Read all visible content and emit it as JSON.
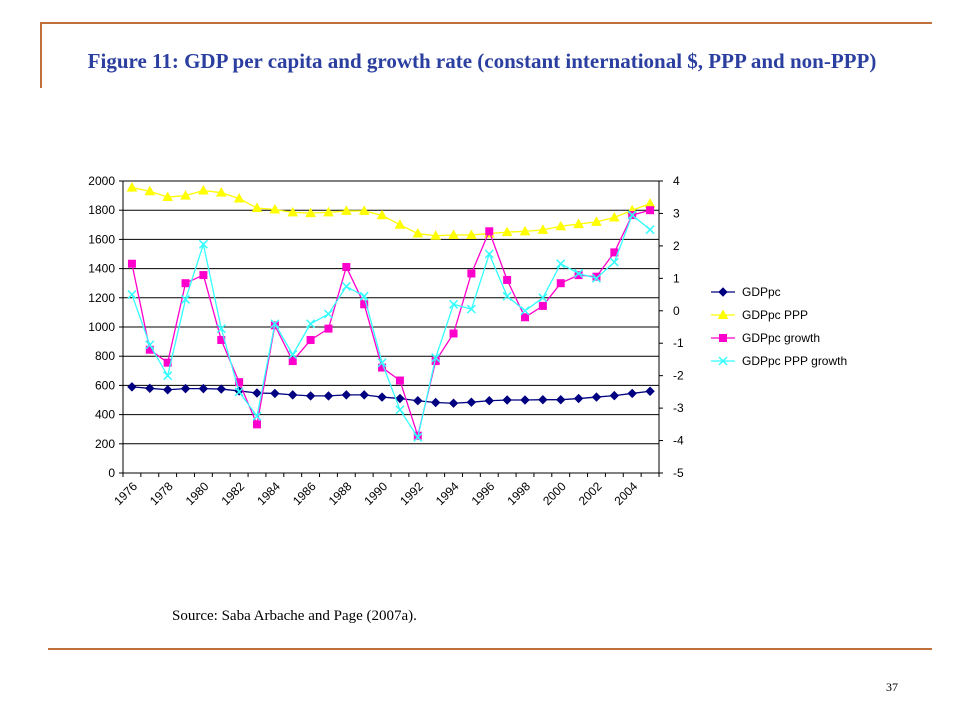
{
  "slide": {
    "title": "Figure 11: GDP per capita and growth rate (constant international $, PPP and non-PPP)",
    "source": "Source: Saba Arbache and Page (2007a).",
    "page_number": "37",
    "frame_color": "#c0703a",
    "title_color": "#2b3fa0"
  },
  "chart_data": {
    "type": "line",
    "title": "",
    "xlabel": "",
    "ylabel": "",
    "x": [
      1976,
      1977,
      1978,
      1979,
      1980,
      1981,
      1982,
      1983,
      1984,
      1985,
      1986,
      1987,
      1988,
      1989,
      1990,
      1991,
      1992,
      1993,
      1994,
      1995,
      1996,
      1997,
      1998,
      1999,
      2000,
      2001,
      2002,
      2003,
      2004,
      2005
    ],
    "x_tick_labels": [
      "1976",
      "1978",
      "1980",
      "1982",
      "1984",
      "1986",
      "1988",
      "1990",
      "1992",
      "1994",
      "1996",
      "1998",
      "2000",
      "2002",
      "2004"
    ],
    "y_left": {
      "ylim": [
        0,
        2000
      ],
      "ticks": [
        "0",
        "200",
        "400",
        "600",
        "800",
        "1000",
        "1200",
        "1400",
        "1600",
        "1800",
        "2000"
      ]
    },
    "y_right": {
      "ylim": [
        -5,
        4
      ],
      "ticks": [
        "-5",
        "-4",
        "-3",
        "-2",
        "-1",
        "0",
        "1",
        "2",
        "3",
        "4"
      ]
    },
    "grid": true,
    "legend_position": "right",
    "series": [
      {
        "name": "GDPpc",
        "axis": "left",
        "color": "#000080",
        "marker": "diamond",
        "values": [
          590,
          580,
          570,
          578,
          578,
          575,
          562,
          548,
          545,
          535,
          528,
          528,
          535,
          535,
          520,
          510,
          495,
          483,
          478,
          485,
          495,
          500,
          500,
          502,
          502,
          510,
          520,
          530,
          545,
          560
        ]
      },
      {
        "name": "GDPpc PPP",
        "axis": "left",
        "color": "#ffff00",
        "marker": "triangle",
        "values": [
          1955,
          1930,
          1890,
          1900,
          1935,
          1920,
          1880,
          1815,
          1805,
          1785,
          1780,
          1785,
          1795,
          1795,
          1765,
          1700,
          1640,
          1625,
          1630,
          1630,
          1640,
          1650,
          1655,
          1665,
          1690,
          1705,
          1720,
          1750,
          1800,
          1845
        ]
      },
      {
        "name": "GDPpc growth",
        "axis": "right",
        "color": "#ff00cc",
        "marker": "square",
        "values": [
          1.45,
          -1.2,
          -1.6,
          0.85,
          1.1,
          -0.9,
          -2.2,
          -3.5,
          -0.45,
          -1.55,
          -0.9,
          -0.55,
          1.35,
          0.2,
          -1.75,
          -2.15,
          -3.85,
          -1.55,
          -0.7,
          1.15,
          2.45,
          0.95,
          -0.2,
          0.15,
          0.85,
          1.1,
          1.05,
          1.8,
          2.95,
          3.1
        ]
      },
      {
        "name": "GDPpc PPP growth",
        "axis": "right",
        "color": "#33ffff",
        "marker": "x",
        "values": [
          0.5,
          -1.05,
          -2.0,
          0.35,
          2.05,
          -0.55,
          -2.5,
          -3.25,
          -0.4,
          -1.35,
          -0.4,
          -0.1,
          0.75,
          0.45,
          -1.6,
          -3.05,
          -3.9,
          -1.45,
          0.2,
          0.05,
          1.75,
          0.45,
          0.0,
          0.4,
          1.45,
          1.15,
          1.0,
          1.5,
          2.95,
          2.5
        ]
      }
    ]
  }
}
